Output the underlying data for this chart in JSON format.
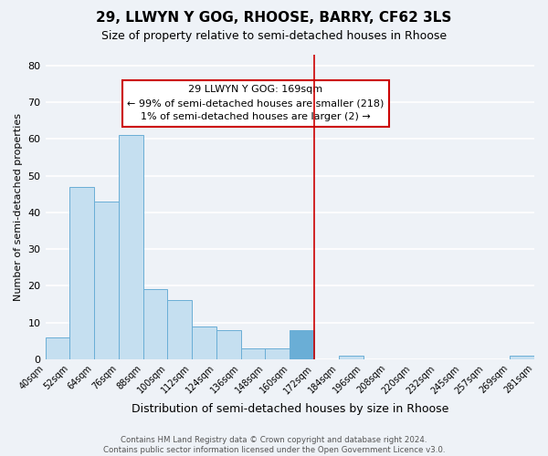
{
  "title": "29, LLWYN Y GOG, RHOOSE, BARRY, CF62 3LS",
  "subtitle": "Size of property relative to semi-detached houses in Rhoose",
  "xlabel": "Distribution of semi-detached houses by size in Rhoose",
  "ylabel": "Number of semi-detached properties",
  "footer_line1": "Contains HM Land Registry data © Crown copyright and database right 2024.",
  "footer_line2": "Contains public sector information licensed under the Open Government Licence v3.0.",
  "bin_labels": [
    "40sqm",
    "52sqm",
    "64sqm",
    "76sqm",
    "88sqm",
    "100sqm",
    "112sqm",
    "124sqm",
    "136sqm",
    "148sqm",
    "160sqm",
    "172sqm",
    "184sqm",
    "196sqm",
    "208sqm",
    "220sqm",
    "232sqm",
    "245sqm",
    "257sqm",
    "269sqm",
    "281sqm"
  ],
  "bar_values": [
    6,
    47,
    43,
    61,
    19,
    16,
    9,
    8,
    3,
    3,
    8,
    0,
    1,
    0,
    0,
    0,
    0,
    0,
    0,
    1
  ],
  "bar_color": "#c5dff0",
  "bar_edge_color": "#6aaed6",
  "highlight_bar_index": 10,
  "highlight_bar_color": "#6aaed6",
  "vline_x": 11,
  "vline_color": "#cc0000",
  "annotation_title": "29 LLWYN Y GOG: 169sqm",
  "annotation_line1": "← 99% of semi-detached houses are smaller (218)",
  "annotation_line2": "1% of semi-detached houses are larger (2) →",
  "ylim": [
    0,
    83
  ],
  "yticks": [
    0,
    10,
    20,
    30,
    40,
    50,
    60,
    70,
    80
  ],
  "background_color": "#eef2f7",
  "grid_color": "#ffffff"
}
